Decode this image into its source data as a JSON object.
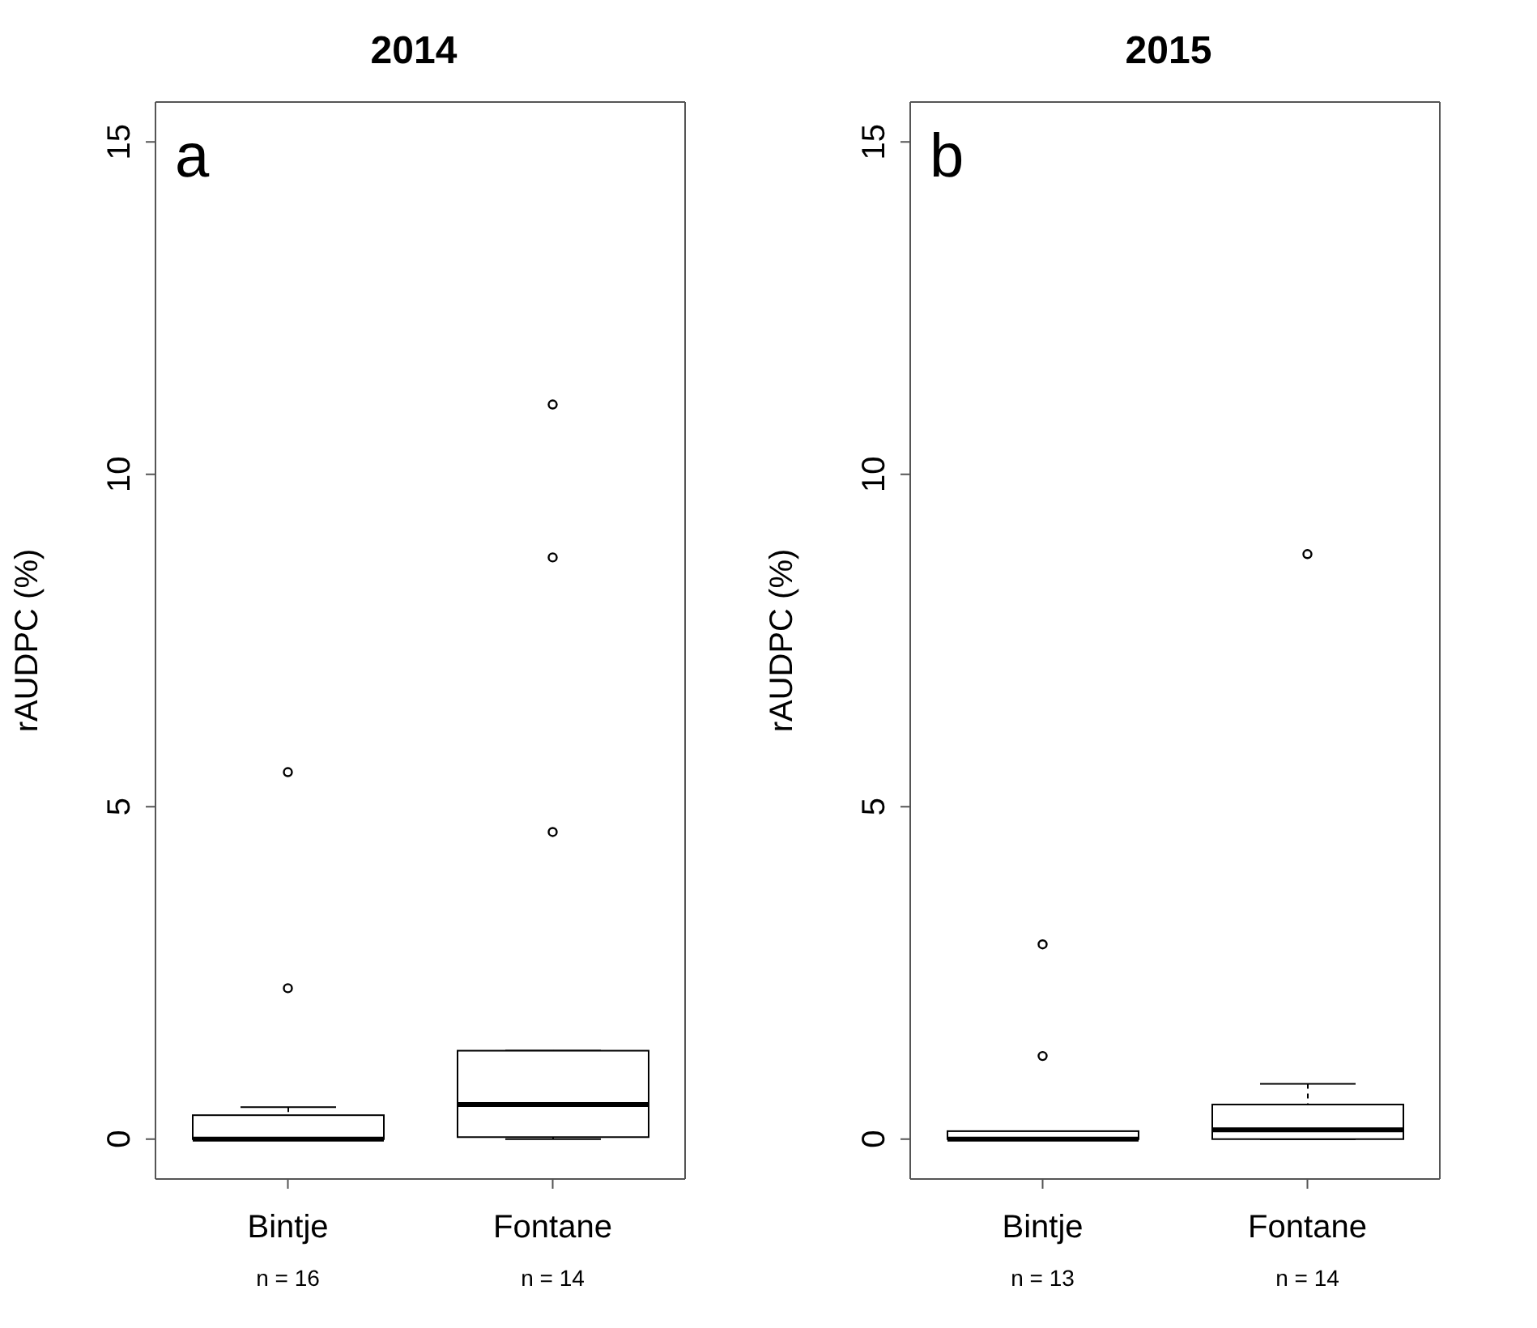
{
  "chart_data": [
    {
      "type": "box",
      "title": "2014",
      "ylabel": "rAUDPC (%)",
      "categories": [
        "Bintje",
        "Fontane"
      ],
      "ylim": [
        -0.6,
        15.6
      ],
      "yticks": [
        0,
        5,
        10,
        15
      ],
      "grid": false,
      "annotations": [
        "a",
        "n = 16",
        "n = 14"
      ],
      "boxes": [
        {
          "low": 0,
          "q1": 0,
          "median": 0,
          "q3": 0.36,
          "high": 0.48,
          "outliers": [
            2.27,
            5.52
          ]
        },
        {
          "low": 0,
          "q1": 0.03,
          "median": 0.52,
          "q3": 1.33,
          "high": 1.33,
          "outliers": [
            4.62,
            8.75,
            11.05
          ]
        }
      ]
    },
    {
      "type": "box",
      "title": "2015",
      "ylabel": "rAUDPC (%)",
      "categories": [
        "Bintje",
        "Fontane"
      ],
      "ylim": [
        -0.6,
        15.6
      ],
      "yticks": [
        0,
        5,
        10,
        15
      ],
      "grid": false,
      "annotations": [
        "b",
        "n = 13",
        "n = 14"
      ],
      "boxes": [
        {
          "low": 0,
          "q1": 0,
          "median": 0,
          "q3": 0.12,
          "high": 0.12,
          "outliers": [
            1.25,
            2.93
          ]
        },
        {
          "low": 0,
          "q1": 0,
          "median": 0.14,
          "q3": 0.52,
          "high": 0.83,
          "outliers": [
            8.8
          ]
        }
      ]
    }
  ]
}
